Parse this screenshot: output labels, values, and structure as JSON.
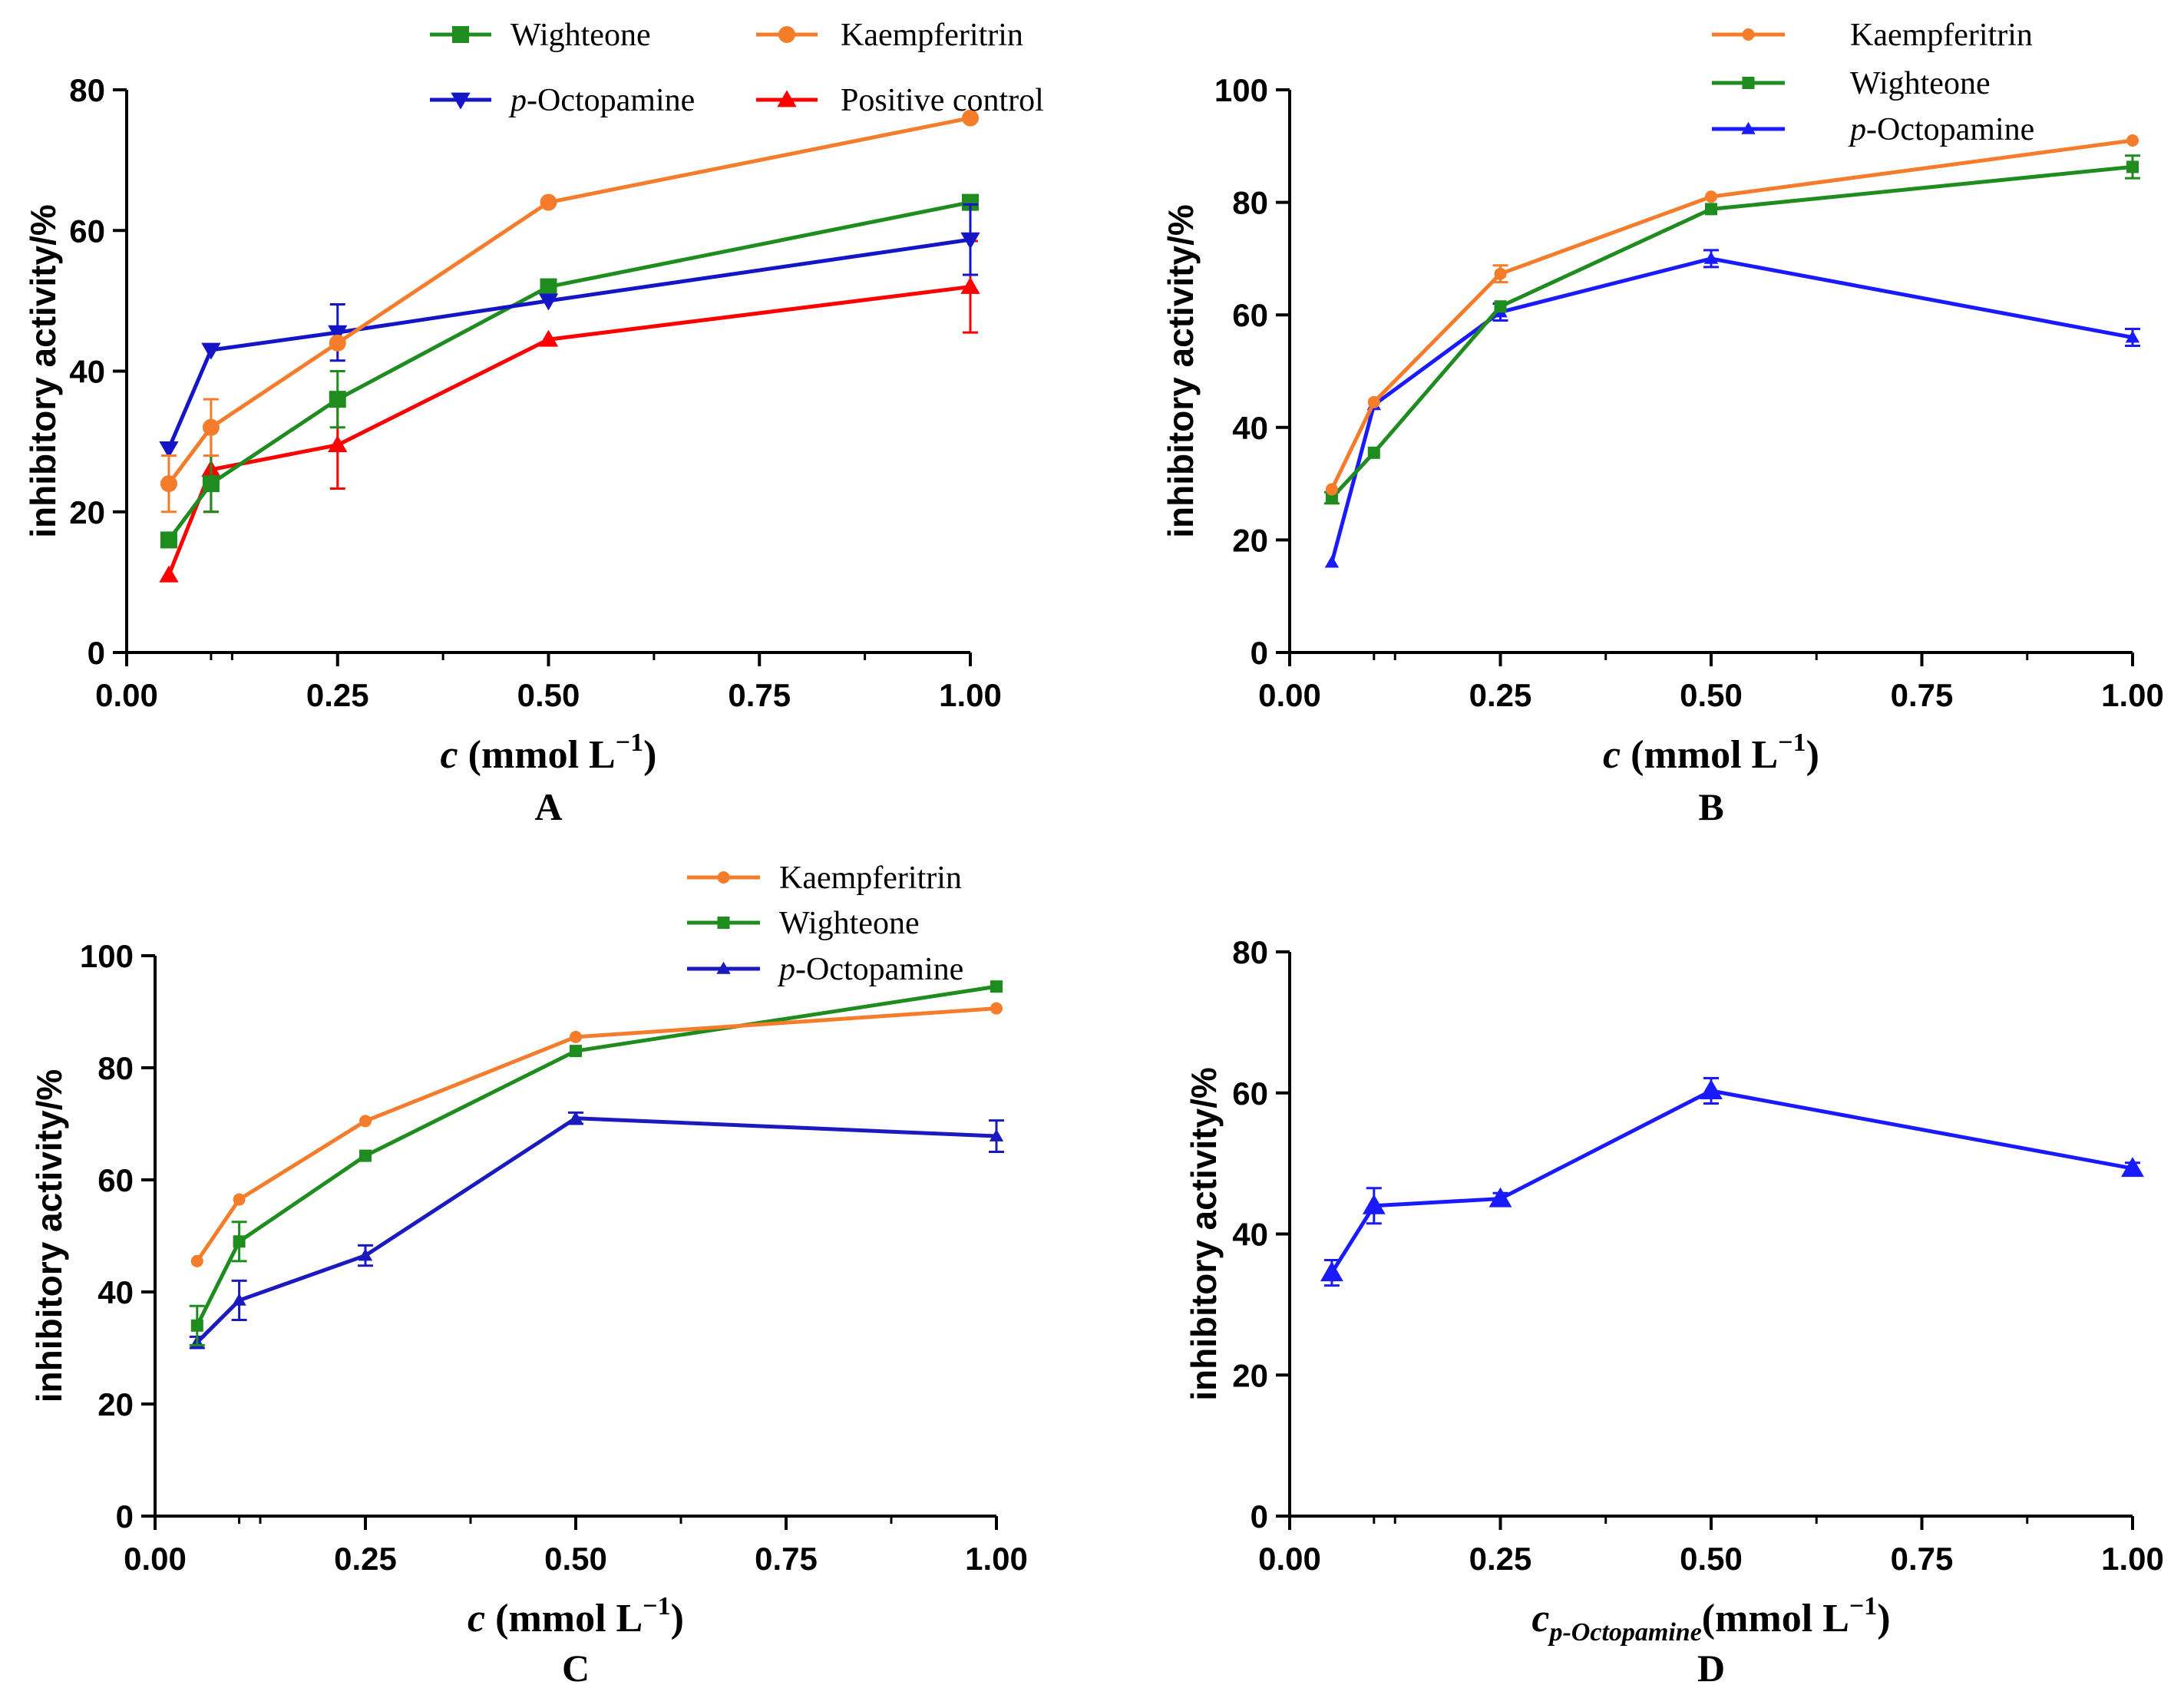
{
  "chart_data": [
    {
      "panel": "A",
      "type": "line",
      "xlabel_prefix": "c",
      "xlabel_rest": " (mmol L",
      "xlabel_sup": "−1",
      "xlabel_close": ")",
      "ylabel": "inhibitory activity/%",
      "xlim": [
        0,
        1
      ],
      "ylim": [
        0,
        80
      ],
      "xticks": [
        0,
        0.25,
        0.5,
        0.75,
        1
      ],
      "xtick_labels": [
        "0.00",
        "0.25",
        "0.50",
        "0.75",
        "1.00"
      ],
      "yticks": [
        0,
        20,
        40,
        60,
        80
      ],
      "ytick_labels": [
        "0",
        "20",
        "40",
        "60",
        "80"
      ],
      "x": [
        0.05,
        0.1,
        0.25,
        0.5,
        1.0
      ],
      "series": [
        {
          "name": "Positive control",
          "prefix": "",
          "color": "#ff0000",
          "marker": "triangle-up",
          "values": [
            11,
            26,
            29.5,
            44.5,
            52
          ],
          "errors": [
            0,
            6,
            6.2,
            0,
            6.5
          ]
        },
        {
          "name": "Wighteone",
          "prefix": "",
          "color": "#1e8c1e",
          "marker": "square",
          "values": [
            16,
            24,
            36,
            52,
            64
          ],
          "errors": [
            0,
            4,
            4,
            0,
            0
          ]
        },
        {
          "name": "-Octopamine",
          "prefix": "p",
          "color": "#1515c8",
          "marker": "triangle-down",
          "values": [
            29,
            43,
            45.5,
            50,
            58.7
          ],
          "errors": [
            0,
            0,
            4,
            0,
            5
          ]
        },
        {
          "name": "Kaempferitrin",
          "prefix": "",
          "color": "#f57c2a",
          "marker": "circle",
          "values": [
            24,
            32,
            44,
            64,
            76
          ],
          "errors": [
            4,
            4,
            0,
            0,
            0
          ]
        }
      ],
      "legend_order": [
        1,
        3,
        2,
        0
      ],
      "legend_labels": [
        "Wighteone",
        "Kaempferitrin",
        "-Octopamine",
        "Positive control"
      ],
      "legend_prefixes": [
        "",
        "",
        "p",
        ""
      ],
      "legend_position": "top, two columns"
    },
    {
      "panel": "B",
      "type": "line",
      "xlabel_prefix": "c",
      "xlabel_rest": " (mmol L",
      "xlabel_sup": "−1",
      "xlabel_close": ")",
      "ylabel": "inhibitory activity/%",
      "xlim": [
        0,
        1
      ],
      "ylim": [
        0,
        100
      ],
      "xticks": [
        0,
        0.25,
        0.5,
        0.75,
        1
      ],
      "xtick_labels": [
        "0.00",
        "0.25",
        "0.50",
        "0.75",
        "1.00"
      ],
      "yticks": [
        0,
        20,
        40,
        60,
        80,
        100
      ],
      "ytick_labels": [
        "0",
        "20",
        "40",
        "60",
        "80",
        "100"
      ],
      "x": [
        0.05,
        0.1,
        0.25,
        0.5,
        1.0
      ],
      "series": [
        {
          "name": "-Octopamine",
          "prefix": "p",
          "color": "#1a1aff",
          "marker": "triangle-up",
          "values": [
            16,
            44,
            60.5,
            70,
            56
          ],
          "errors": [
            0,
            0,
            1.5,
            1.5,
            1.5
          ]
        },
        {
          "name": "Wighteone",
          "prefix": "",
          "color": "#1e8c1e",
          "marker": "square",
          "values": [
            27.5,
            35.5,
            61.5,
            78.8,
            86.3
          ],
          "errors": [
            1,
            0,
            0,
            0,
            2
          ]
        },
        {
          "name": "Kaempferitrin",
          "prefix": "",
          "color": "#f57c2a",
          "marker": "circle",
          "values": [
            29,
            44.5,
            67.3,
            81,
            91
          ],
          "errors": [
            0,
            0,
            1.5,
            0,
            0
          ]
        }
      ],
      "legend_order": [
        2,
        1,
        0
      ],
      "legend_labels": [
        "Kaempferitrin",
        "Wighteone",
        "-Octopamine"
      ],
      "legend_prefixes": [
        "",
        "",
        "p"
      ],
      "legend_position": "top-right"
    },
    {
      "panel": "C",
      "type": "line",
      "xlabel_prefix": "c",
      "xlabel_rest": " (mmol L",
      "xlabel_sup": "−1",
      "xlabel_close": ")",
      "ylabel": "inhibitory activity/%",
      "xlim": [
        0,
        1
      ],
      "ylim": [
        0,
        100
      ],
      "xticks": [
        0,
        0.25,
        0.5,
        0.75,
        1
      ],
      "xtick_labels": [
        "0.00",
        "0.25",
        "0.50",
        "0.75",
        "1.00"
      ],
      "yticks": [
        0,
        20,
        40,
        60,
        80,
        100
      ],
      "ytick_labels": [
        "0",
        "20",
        "40",
        "60",
        "80",
        "100"
      ],
      "x": [
        0.05,
        0.1,
        0.25,
        0.5,
        1.0
      ],
      "series": [
        {
          "name": "-Octopamine",
          "prefix": "p",
          "color": "#1a1abf",
          "marker": "triangle-up",
          "values": [
            31,
            38.5,
            46.5,
            71,
            67.8
          ],
          "errors": [
            1,
            3.5,
            1.8,
            1,
            2.8
          ]
        },
        {
          "name": "Wighteone",
          "prefix": "",
          "color": "#1e8c1e",
          "marker": "square",
          "values": [
            34,
            49,
            64.3,
            83,
            94.5
          ],
          "errors": [
            3.5,
            3.5,
            0,
            0,
            0
          ]
        },
        {
          "name": "Kaempferitrin",
          "prefix": "",
          "color": "#f57c2a",
          "marker": "circle",
          "values": [
            45.5,
            56.5,
            70.5,
            85.5,
            90.6
          ],
          "errors": [
            0,
            0,
            0,
            0,
            0
          ]
        }
      ],
      "legend_order": [
        2,
        1,
        0
      ],
      "legend_labels": [
        "Kaempferitrin",
        "Wighteone",
        "-Octopamine"
      ],
      "legend_prefixes": [
        "",
        "",
        "p"
      ],
      "legend_position": "top-right"
    },
    {
      "panel": "D",
      "type": "line",
      "xlabel_prefix": "c",
      "xlabel_sub": "p-Octopamine",
      "xlabel_rest": "(mmol L",
      "xlabel_sup": "−1",
      "xlabel_close": ")",
      "ylabel": "inhibitory activity/%",
      "xlim": [
        0,
        1
      ],
      "ylim": [
        0,
        80
      ],
      "xticks": [
        0,
        0.25,
        0.5,
        0.75,
        1
      ],
      "xtick_labels": [
        "0.00",
        "0.25",
        "0.50",
        "0.75",
        "1.00"
      ],
      "yticks": [
        0,
        20,
        40,
        60,
        80
      ],
      "ytick_labels": [
        "0",
        "20",
        "40",
        "60",
        "80"
      ],
      "x": [
        0.05,
        0.1,
        0.25,
        0.5,
        1.0
      ],
      "series": [
        {
          "name": "p-Octopamine",
          "prefix": "",
          "color": "#1a1aff",
          "marker": "triangle-up",
          "values": [
            34.5,
            44,
            45,
            60.3,
            49.3
          ],
          "errors": [
            1.8,
            2.5,
            0.8,
            1.8,
            0.8
          ]
        }
      ],
      "legend_order": [],
      "legend_labels": [],
      "legend_prefixes": [],
      "legend_position": "none"
    }
  ]
}
